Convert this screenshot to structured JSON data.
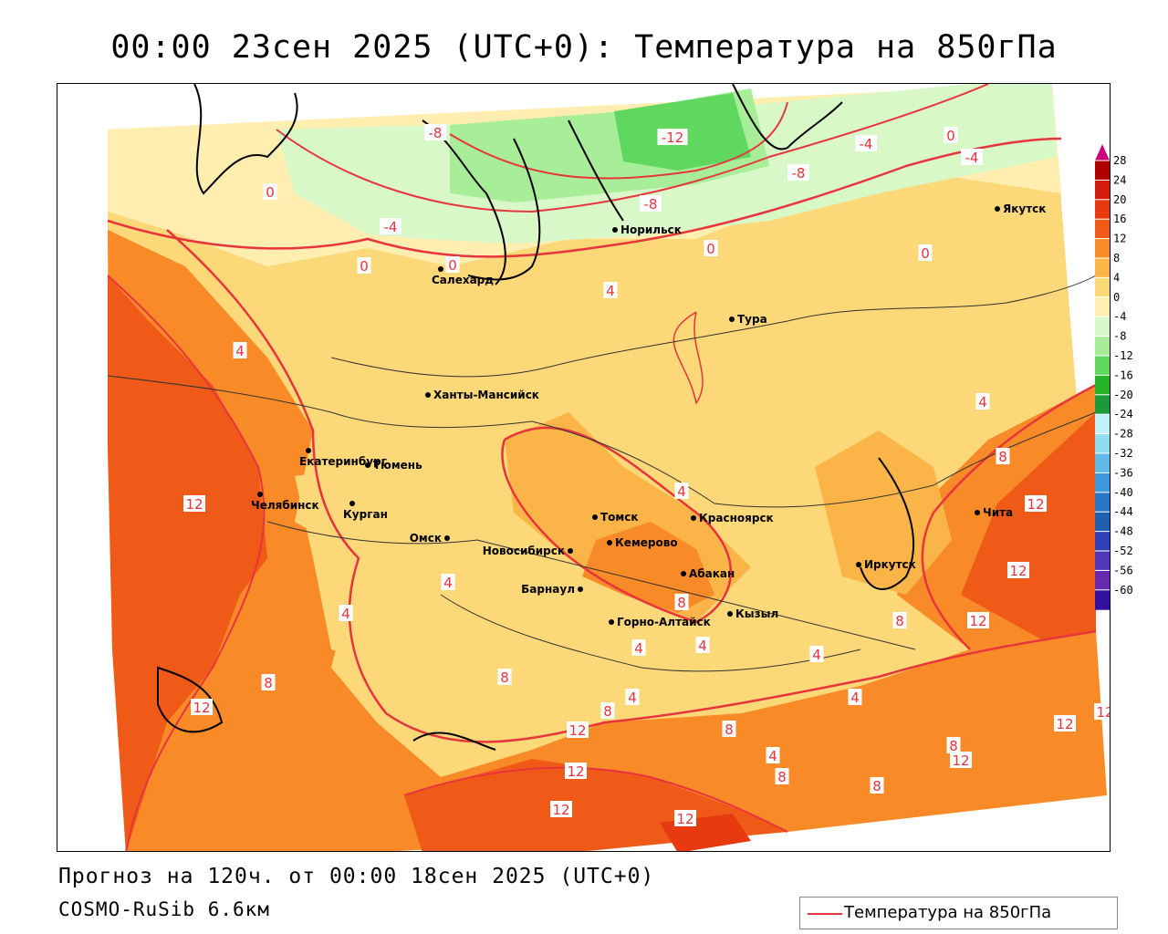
{
  "title": "00:00 23сен 2025 (UTC+0): Температура на 850гПа",
  "footer": {
    "forecast": "Прогноз на 120ч. от 00:00 18сен 2025 (UTC+0)",
    "model": "COSMO-RuSib 6.6км"
  },
  "legend": {
    "label": "Температура на 850гПа",
    "line_color": "#e8343c"
  },
  "scale": {
    "ticks": [
      "28",
      "24",
      "20",
      "16",
      "12",
      "8",
      "4",
      "0",
      "-4",
      "-8",
      "-12",
      "-16",
      "-20",
      "-24",
      "-28",
      "-32",
      "-36",
      "-40",
      "-44",
      "-48",
      "-52",
      "-56",
      "-60"
    ],
    "colors": [
      "#c8007a",
      "#b00000",
      "#d41a0a",
      "#e83a10",
      "#f05a18",
      "#f88a28",
      "#fbb448",
      "#fdd878",
      "#ffeeb0",
      "#d8f8c8",
      "#a8ee98",
      "#60d860",
      "#28b428",
      "#1a9a3a",
      "#c0f0f8",
      "#90dcf0",
      "#60b8e8",
      "#3c98dc",
      "#2878c8",
      "#2060b0",
      "#3040b8",
      "#5038b8",
      "#6828b0",
      "#3010a0"
    ]
  },
  "cities": [
    {
      "name": "Норильск"
    },
    {
      "name": "Якутск"
    },
    {
      "name": "Салехард"
    },
    {
      "name": "Тура"
    },
    {
      "name": "Ханты-Мансийск"
    },
    {
      "name": "Екатеринбург"
    },
    {
      "name": "Тюмень"
    },
    {
      "name": "Челябинск"
    },
    {
      "name": "Курган"
    },
    {
      "name": "Омск"
    },
    {
      "name": "Томск"
    },
    {
      "name": "Красноярск"
    },
    {
      "name": "Новосибирск"
    },
    {
      "name": "Кемерово"
    },
    {
      "name": "Абакан"
    },
    {
      "name": "Барнаул"
    },
    {
      "name": "Горно-Алтайск"
    },
    {
      "name": "Кызыл"
    },
    {
      "name": "Иркутск"
    },
    {
      "name": "Чита"
    }
  ],
  "isotherm_labels": [
    "-8",
    "-12",
    "-8",
    "-4",
    "-8",
    "-4",
    "-4",
    "0",
    "0",
    "0",
    "0",
    "0",
    "0",
    "4",
    "4",
    "4",
    "4",
    "4",
    "4",
    "4",
    "4",
    "4",
    "4",
    "4",
    "4",
    "8",
    "8",
    "8",
    "8",
    "8",
    "8",
    "8",
    "8",
    "8",
    "8",
    "12",
    "12",
    "12",
    "12",
    "12",
    "12",
    "12",
    "12",
    "12",
    "12",
    "12",
    "12"
  ]
}
